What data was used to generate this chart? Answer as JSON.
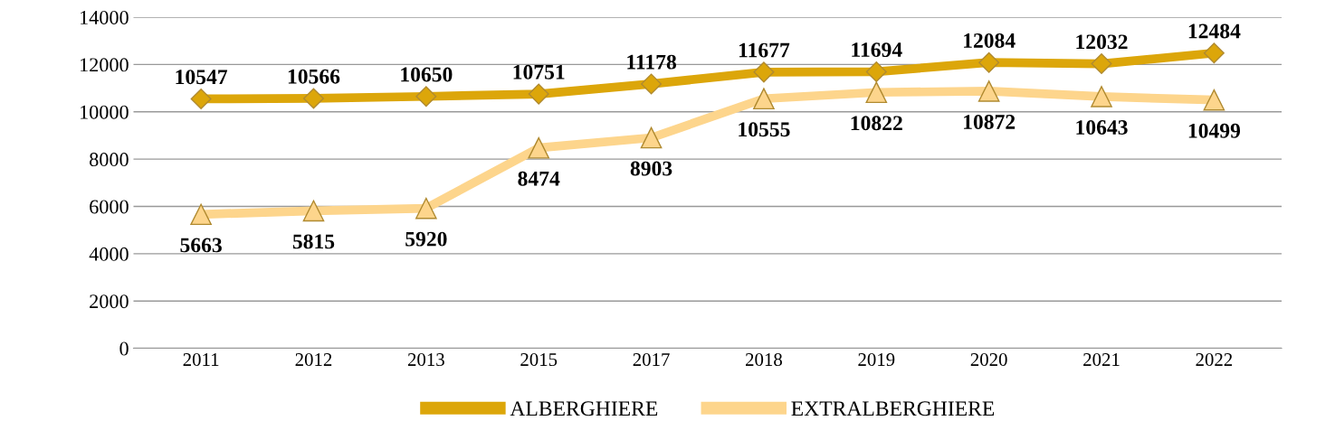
{
  "chart_data": {
    "type": "line",
    "categories": [
      "2011",
      "2012",
      "2013",
      "2015",
      "2017",
      "2018",
      "2019",
      "2020",
      "2021",
      "2022"
    ],
    "series": [
      {
        "name": "ALBERGHIERE",
        "color": "#dca60a",
        "marker": "diamond",
        "values": [
          10547,
          10566,
          10650,
          10751,
          11178,
          11677,
          11694,
          12084,
          12032,
          12484
        ]
      },
      {
        "name": "EXTRALBERGHIERE",
        "color": "#fdd58c",
        "marker": "triangle",
        "values": [
          5663,
          5815,
          5920,
          8474,
          8903,
          10555,
          10822,
          10872,
          10643,
          10499
        ]
      }
    ],
    "ylim": [
      0,
      14000
    ],
    "yticks": [
      0,
      2000,
      4000,
      6000,
      8000,
      10000,
      12000,
      14000
    ],
    "grid": "y",
    "legend": "bottom",
    "data_labels": true,
    "line_style": "solid"
  }
}
